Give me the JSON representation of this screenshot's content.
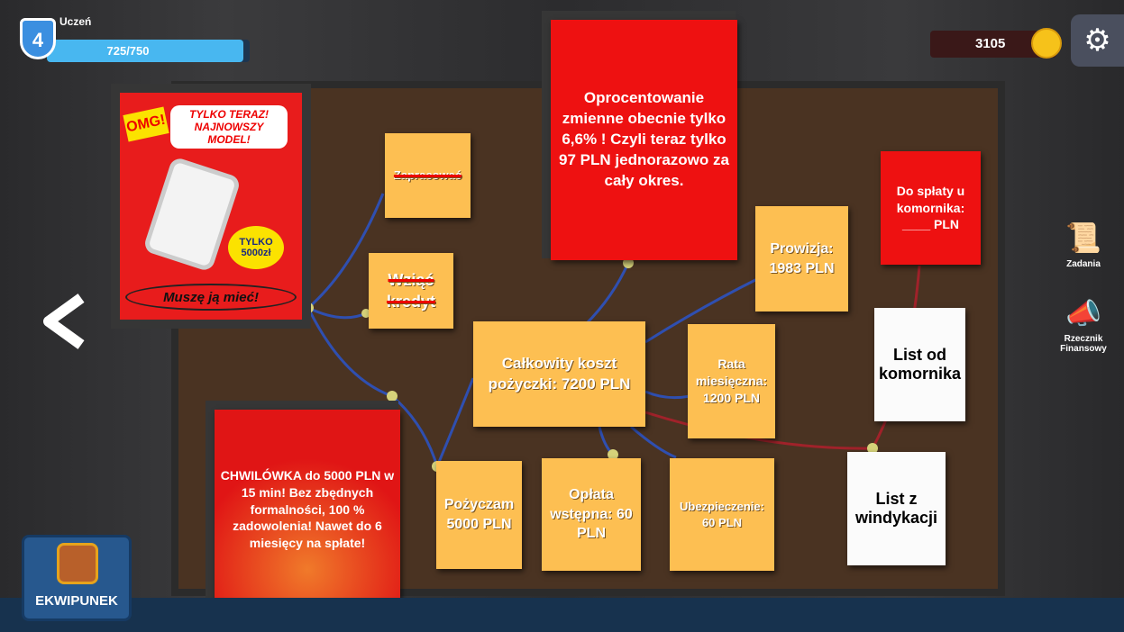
{
  "hud": {
    "level": 4,
    "rank": "Uczeń",
    "xp": {
      "value": 725,
      "max": 750,
      "label": "725/750"
    },
    "coins": 3105
  },
  "side_menu": [
    "Zadania",
    "Rzecznik Finansowy"
  ],
  "inventory": "EKWIPUNEK",
  "poster": {
    "burst": "OMG!",
    "headline": "TYLKO TERAZ! NAJNOWSZY MODEL!",
    "price": "TYLKO 5000zł",
    "slogan": "Muszę ją mieć!"
  },
  "red_notes": [
    "Oprocentowanie zmienne obecnie tylko 6,6% ! Czyli teraz tylko 97 PLN jednorazowo za cały okres.",
    "Do spłaty u komornika: ____ PLN",
    "CHWILÓWKA do 5000 PLN w 15 min! Bez zbędnych formalności, 100 % zadowolenia! Nawet do 6 miesięcy na spłate!"
  ],
  "crossed_notes": [
    "Zapracować",
    "Wziąć kredyt"
  ],
  "notes": [
    "Całkowity koszt pożyczki: 7200 PLN",
    "Pożyczam 5000 PLN",
    "Opłata wstępna: 60 PLN",
    "Ubezpieczenie: 60 PLN",
    "Rata miesięczna: 1200 PLN",
    "Prowizja: 1983 PLN"
  ],
  "letters": [
    "List od komornika",
    "List z windykacji"
  ]
}
